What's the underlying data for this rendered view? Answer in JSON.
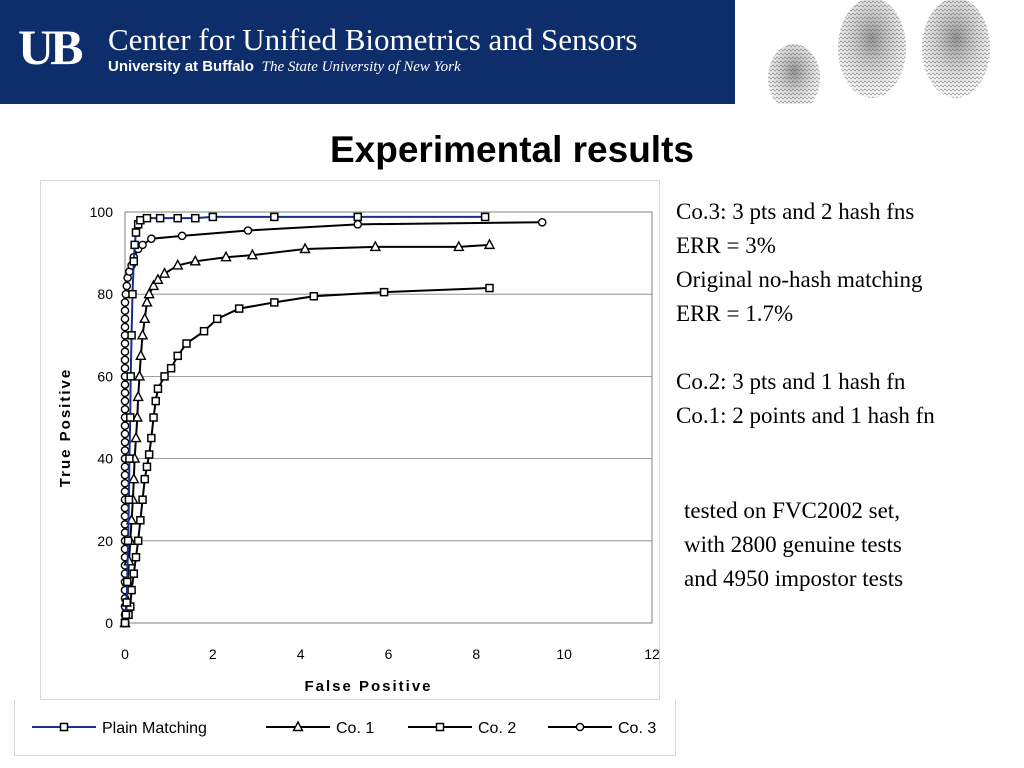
{
  "header": {
    "logo_text": "UB",
    "center_name": "Center for Unified Biometrics and Sensors",
    "university_name": "University at Buffalo",
    "university_subtitle": "The State University of New York",
    "banner_color": "#0d2d6b"
  },
  "slide_title": "Experimental results",
  "notes": {
    "block1": [
      "Co.3:  3 pts and 2 hash fns",
      "ERR = 3%",
      "Original no-hash matching",
      "ERR =  1.7%"
    ],
    "block2": [
      "Co.2: 3 pts and 1 hash fn",
      "Co.1: 2 points and 1 hash fn"
    ],
    "block3": [
      "tested on FVC2002 set,",
      "with 2800 genuine tests",
      "and 4950 impostor tests"
    ]
  },
  "chart_data": {
    "type": "line",
    "xlabel": "False Positive",
    "ylabel": "True Positive",
    "xlim": [
      0,
      12
    ],
    "ylim": [
      0,
      100
    ],
    "xticks": [
      "0",
      "2",
      "4",
      "6",
      "8",
      "10",
      "12"
    ],
    "yticks": [
      "0",
      "20",
      "40",
      "60",
      "80",
      "100"
    ],
    "grid": "horizontal",
    "legend_position": "bottom",
    "series": [
      {
        "name": "Plain Matching",
        "marker": "square",
        "color": "#1a2f8a",
        "points": [
          [
            0,
            0
          ],
          [
            0.02,
            2
          ],
          [
            0.04,
            5
          ],
          [
            0.05,
            10
          ],
          [
            0.07,
            20
          ],
          [
            0.09,
            30
          ],
          [
            0.1,
            40
          ],
          [
            0.12,
            50
          ],
          [
            0.13,
            60
          ],
          [
            0.15,
            70
          ],
          [
            0.17,
            80
          ],
          [
            0.2,
            88
          ],
          [
            0.22,
            92
          ],
          [
            0.25,
            95
          ],
          [
            0.3,
            97
          ],
          [
            0.35,
            98
          ],
          [
            0.5,
            98.5
          ],
          [
            0.8,
            98.5
          ],
          [
            1.2,
            98.5
          ],
          [
            1.6,
            98.5
          ],
          [
            2.0,
            98.8
          ],
          [
            3.4,
            98.8
          ],
          [
            5.3,
            98.8
          ],
          [
            8.2,
            98.8
          ]
        ]
      },
      {
        "name": "Co. 1",
        "marker": "triangle",
        "color": "#000000",
        "points": [
          [
            0,
            0
          ],
          [
            0.03,
            5
          ],
          [
            0.06,
            10
          ],
          [
            0.09,
            15
          ],
          [
            0.12,
            20
          ],
          [
            0.15,
            25
          ],
          [
            0.18,
            30
          ],
          [
            0.2,
            35
          ],
          [
            0.22,
            40
          ],
          [
            0.25,
            45
          ],
          [
            0.28,
            50
          ],
          [
            0.3,
            55
          ],
          [
            0.33,
            60
          ],
          [
            0.36,
            65
          ],
          [
            0.4,
            70
          ],
          [
            0.45,
            74
          ],
          [
            0.5,
            78
          ],
          [
            0.55,
            80
          ],
          [
            0.65,
            82
          ],
          [
            0.75,
            83.5
          ],
          [
            0.9,
            85
          ],
          [
            1.2,
            87
          ],
          [
            1.6,
            88
          ],
          [
            2.3,
            89
          ],
          [
            2.9,
            89.5
          ],
          [
            4.1,
            91
          ],
          [
            5.7,
            91.5
          ],
          [
            7.6,
            91.5
          ],
          [
            8.3,
            92
          ]
        ]
      },
      {
        "name": "Co. 2",
        "marker": "square",
        "color": "#000000",
        "points": [
          [
            0,
            0
          ],
          [
            0.08,
            2
          ],
          [
            0.12,
            4
          ],
          [
            0.15,
            8
          ],
          [
            0.2,
            12
          ],
          [
            0.25,
            16
          ],
          [
            0.3,
            20
          ],
          [
            0.35,
            25
          ],
          [
            0.4,
            30
          ],
          [
            0.45,
            35
          ],
          [
            0.5,
            38
          ],
          [
            0.55,
            41
          ],
          [
            0.6,
            45
          ],
          [
            0.65,
            50
          ],
          [
            0.7,
            54
          ],
          [
            0.75,
            57
          ],
          [
            0.9,
            60
          ],
          [
            1.05,
            62
          ],
          [
            1.2,
            65
          ],
          [
            1.4,
            68
          ],
          [
            1.8,
            71
          ],
          [
            2.1,
            74
          ],
          [
            2.6,
            76.5
          ],
          [
            3.4,
            78
          ],
          [
            4.3,
            79.5
          ],
          [
            5.9,
            80.5
          ],
          [
            8.3,
            81.5
          ]
        ]
      },
      {
        "name": "Co. 3",
        "marker": "circle",
        "color": "#000000",
        "points": [
          [
            0,
            0
          ],
          [
            0,
            2
          ],
          [
            0,
            4
          ],
          [
            0,
            6
          ],
          [
            0,
            8
          ],
          [
            0,
            10
          ],
          [
            0,
            12
          ],
          [
            0,
            14
          ],
          [
            0,
            16
          ],
          [
            0,
            18
          ],
          [
            0,
            20
          ],
          [
            0,
            22
          ],
          [
            0,
            24
          ],
          [
            0,
            26
          ],
          [
            0,
            28
          ],
          [
            0,
            30
          ],
          [
            0,
            32
          ],
          [
            0,
            34
          ],
          [
            0,
            36
          ],
          [
            0,
            38
          ],
          [
            0,
            40
          ],
          [
            0,
            42
          ],
          [
            0,
            44
          ],
          [
            0,
            46
          ],
          [
            0,
            48
          ],
          [
            0,
            50
          ],
          [
            0,
            52
          ],
          [
            0,
            54
          ],
          [
            0,
            56
          ],
          [
            0,
            58
          ],
          [
            0,
            60
          ],
          [
            0,
            62
          ],
          [
            0,
            64
          ],
          [
            0,
            66
          ],
          [
            0,
            68
          ],
          [
            0,
            70
          ],
          [
            0,
            72
          ],
          [
            0,
            74
          ],
          [
            0,
            76
          ],
          [
            0,
            78
          ],
          [
            0.02,
            80
          ],
          [
            0.04,
            82
          ],
          [
            0.06,
            84
          ],
          [
            0.1,
            85.5
          ],
          [
            0.15,
            87
          ],
          [
            0.2,
            89
          ],
          [
            0.3,
            91
          ],
          [
            0.4,
            92
          ],
          [
            0.6,
            93.5
          ],
          [
            1.3,
            94.2
          ],
          [
            2.8,
            95.5
          ],
          [
            5.3,
            97
          ],
          [
            9.5,
            97.5
          ]
        ]
      }
    ]
  }
}
